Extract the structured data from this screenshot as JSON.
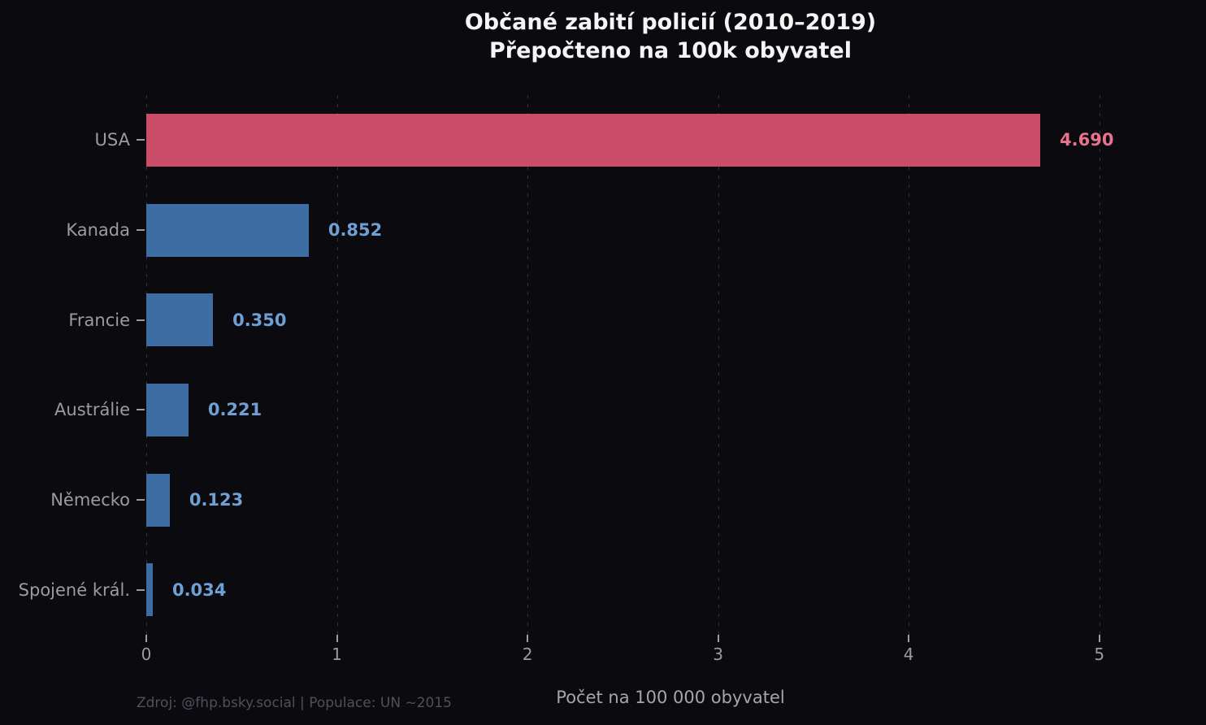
{
  "title": {
    "line1": "Občané zabití policií (2010–2019)",
    "line2": "Přepočteno na 100k obyvatel"
  },
  "chart_data": {
    "type": "bar",
    "orientation": "horizontal",
    "title": "Občané zabití policií (2010–2019) — Přepočteno na 100k obyvatel",
    "categories": [
      "USA",
      "Kanada",
      "Francie",
      "Austrálie",
      "Německo",
      "Spojené král."
    ],
    "values": [
      4.69,
      0.852,
      0.35,
      0.221,
      0.123,
      0.034
    ],
    "value_labels": [
      "4.690",
      "0.852",
      "0.350",
      "0.221",
      "0.123",
      "0.034"
    ],
    "bar_colors": [
      "#cb4c68",
      "#3d6da3",
      "#3d6da3",
      "#3d6da3",
      "#3d6da3",
      "#3d6da3"
    ],
    "value_label_colors": [
      "#e8738e",
      "#6fa0d5",
      "#6fa0d5",
      "#6fa0d5",
      "#6fa0d5",
      "#6fa0d5"
    ],
    "highlight_index": 0,
    "xlabel": "Počet na 100 000 obyvatel",
    "ylabel": "",
    "xlim": [
      0,
      5.5
    ],
    "xticks": [
      0,
      1,
      2,
      3,
      4,
      5
    ],
    "xtick_labels": [
      "0",
      "1",
      "2",
      "3",
      "4",
      "5"
    ],
    "grid": true,
    "grid_axis": "x",
    "legend": false
  },
  "footer": {
    "source": "Zdroj: @fhp.bsky.social | Populace: UN ~2015"
  },
  "colors": {
    "background": "#0a0a0f",
    "title_text": "#f5f5f5",
    "axis_text": "#9b9ba1",
    "xlabel_text": "#a5a5ad",
    "footer_text": "#50505c",
    "gridline": "#32323d",
    "highlight_bar": "#cb4c68",
    "default_bar": "#3d6da3",
    "highlight_value_label": "#e8738e",
    "default_value_label": "#6fa0d5"
  }
}
